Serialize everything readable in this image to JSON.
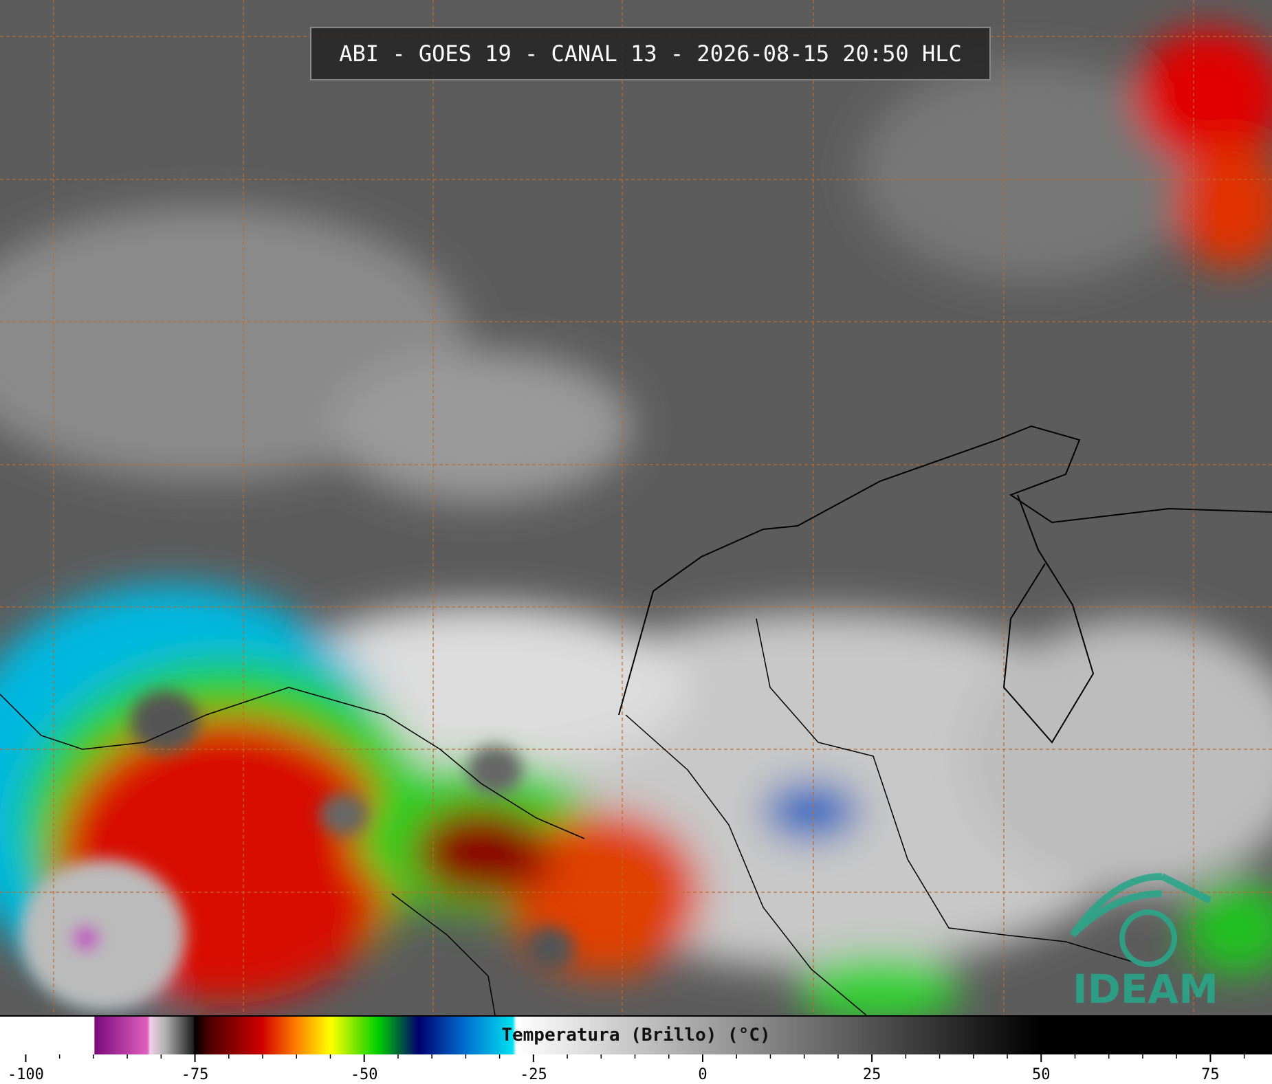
{
  "title": "ABI - GOES 19 - CANAL 13 - 2026-08-15 20:50 HLC",
  "colorbar": {
    "label": "Temperatura (Brillo) (°C)",
    "xlim": [
      -103.8,
      84.1
    ],
    "xticks": [
      -100,
      -75,
      -50,
      -25,
      0,
      25,
      50,
      75
    ]
  },
  "logo": "IDEAM"
}
